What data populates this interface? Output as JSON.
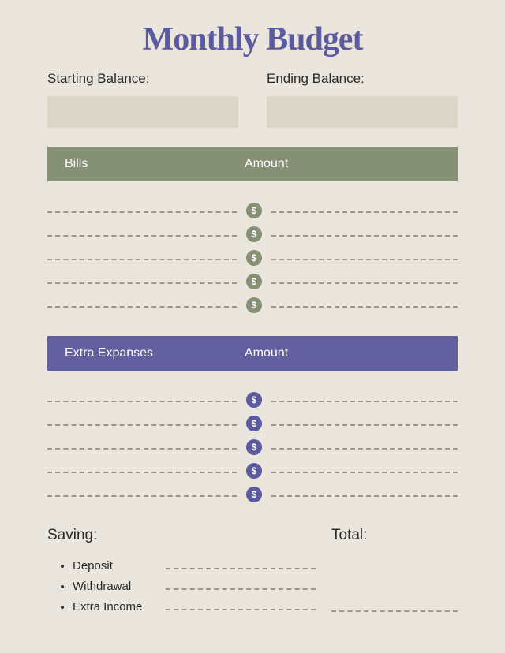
{
  "title": "Monthly Budget",
  "title_color": "#5c5a9e",
  "title_fontsize": 42,
  "page_background": "#eae6dd",
  "dash_color": "#9a968b",
  "balances": {
    "starting_label": "Starting Balance:",
    "ending_label": "Ending Balance:",
    "box_background": "#dbd6c8"
  },
  "bills_section": {
    "header_labels": {
      "left": "Bills",
      "right": "Amount"
    },
    "header_bg": "#859075",
    "header_text_color": "#ffffff",
    "coin_color": "#859075",
    "coin_label": "$",
    "row_count": 5
  },
  "extra_section": {
    "header_labels": {
      "left": "Extra Expanses",
      "right": "Amount"
    },
    "header_bg": "#625f9e",
    "header_text_color": "#ffffff",
    "coin_color": "#5c5a9e",
    "coin_label": "$",
    "row_count": 5
  },
  "saving": {
    "title": "Saving:",
    "items": [
      {
        "label": "Deposit"
      },
      {
        "label": "Withdrawal"
      },
      {
        "label": "Extra Income"
      }
    ]
  },
  "total": {
    "title": "Total:"
  }
}
